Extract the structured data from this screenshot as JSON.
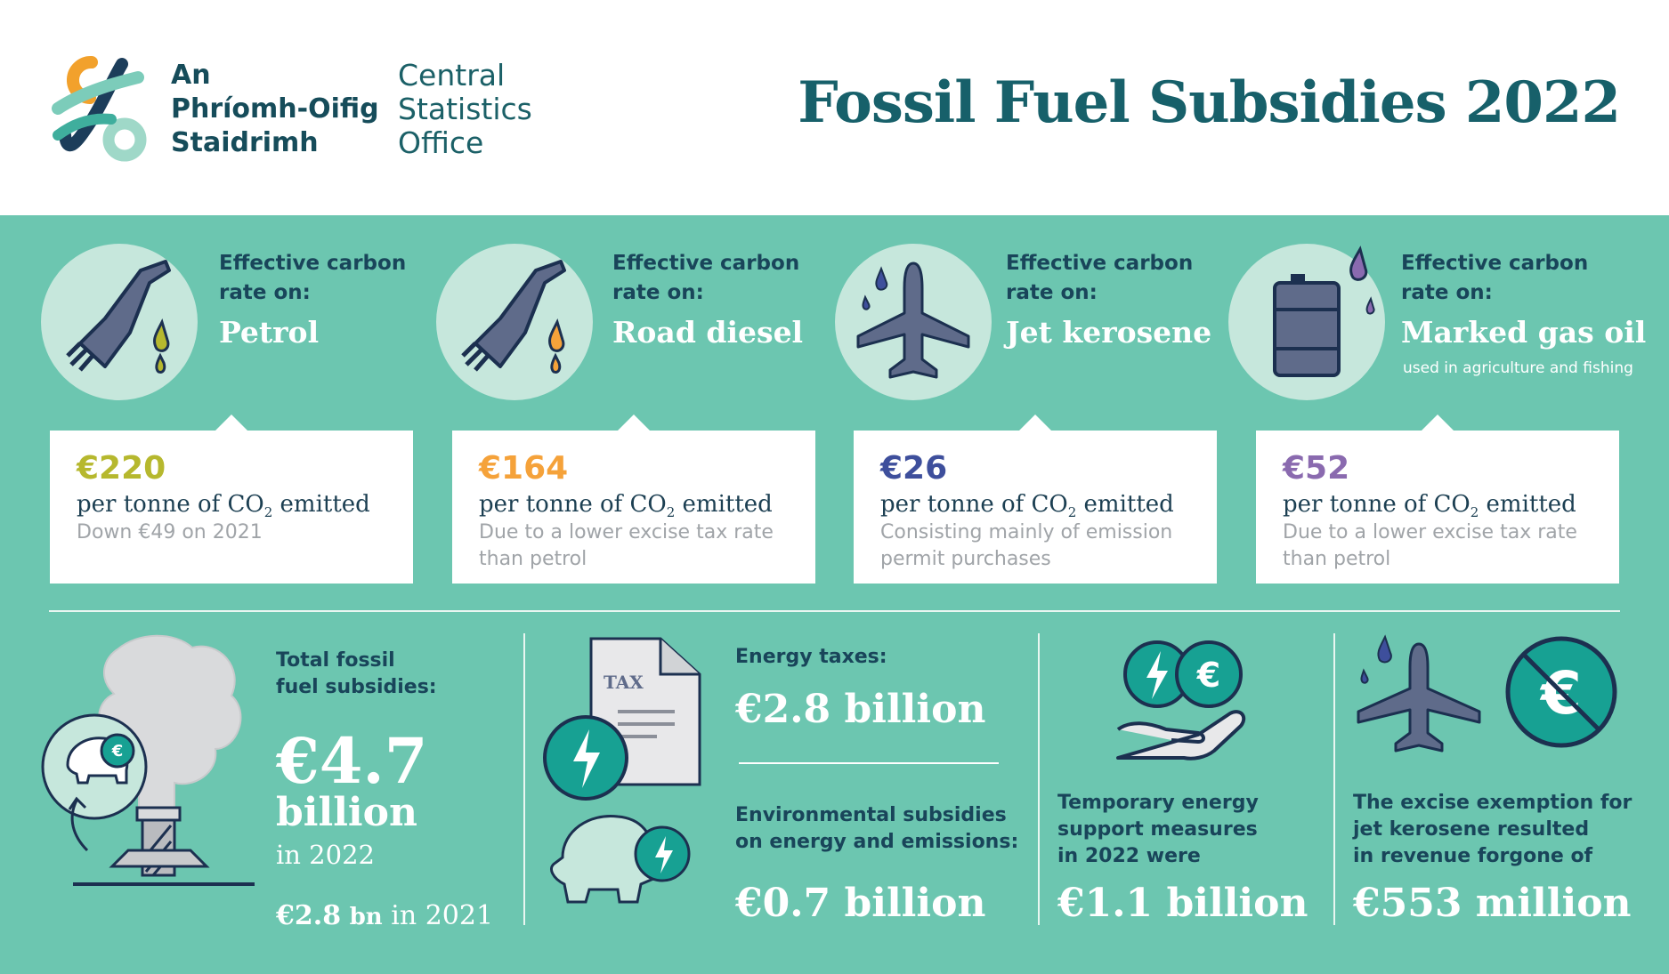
{
  "header": {
    "org_irish": [
      "An",
      "Phríomh-Oifig",
      "Staidrimh"
    ],
    "org_english": [
      "Central",
      "Statistics",
      "Office"
    ],
    "title": "Fossil Fuel Subsidies 2022"
  },
  "colors": {
    "panel": "#6cc6b0",
    "dark_teal": "#19455a",
    "petrol": "#b6b82e",
    "road_diesel": "#f5a23a",
    "jet_kerosene": "#3e4f9c",
    "marked_gas_oil": "#8a6aaf"
  },
  "fuels": [
    {
      "label": "Effective carbon rate on:",
      "name": "Petrol",
      "note": "",
      "value": "€220",
      "unit_pre": "per tonne of CO",
      "unit_sub": "2",
      "unit_post": " emitted",
      "description": "Down €49 on 2021",
      "icon": "fuel-nozzle-icon"
    },
    {
      "label": "Effective carbon rate on:",
      "name": "Road diesel",
      "note": "",
      "value": "€164",
      "unit_pre": "per tonne of CO",
      "unit_sub": "2",
      "unit_post": " emitted",
      "description": "Due to a lower excise tax rate than petrol",
      "icon": "fuel-nozzle-icon"
    },
    {
      "label": "Effective carbon rate on:",
      "name": "Jet kerosene",
      "note": "",
      "value": "€26",
      "unit_pre": "per tonne of CO",
      "unit_sub": "2",
      "unit_post": " emitted",
      "description": "Consisting mainly of emission permit purchases",
      "icon": "airplane-icon"
    },
    {
      "label": "Effective carbon rate on:",
      "name": "Marked gas oil",
      "note": "used in agriculture and fishing",
      "value": "€52",
      "unit_pre": "per tonne of CO",
      "unit_sub": "2",
      "unit_post": " emitted",
      "description": "Due to a lower excise tax rate than petrol",
      "icon": "oil-barrel-icon"
    }
  ],
  "total": {
    "label_line1": "Total fossil",
    "label_line2": "fuel subsidies:",
    "value": "€4.7",
    "value_unit": "billion",
    "year": "in 2022",
    "prev_value": "€2.8",
    "prev_unit": "bn",
    "prev_year": "in 2021"
  },
  "energy_taxes": {
    "label": "Energy taxes:",
    "value": "€2.8 billion",
    "tax_doc_text": "TAX"
  },
  "environmental": {
    "label_line1": "Environmental subsidies",
    "label_line2": "on energy and emissions:",
    "value": "€0.7 billion"
  },
  "temporary": {
    "label_line1": "Temporary energy",
    "label_line2": "support measures",
    "label_line3": "in 2022 were",
    "value": "€1.1 billion"
  },
  "excise": {
    "label_line1": "The excise exemption for",
    "label_line2": "jet kerosene resulted",
    "label_line3": "in revenue forgone of",
    "value": "€553 million"
  },
  "euro_symbol": "€"
}
